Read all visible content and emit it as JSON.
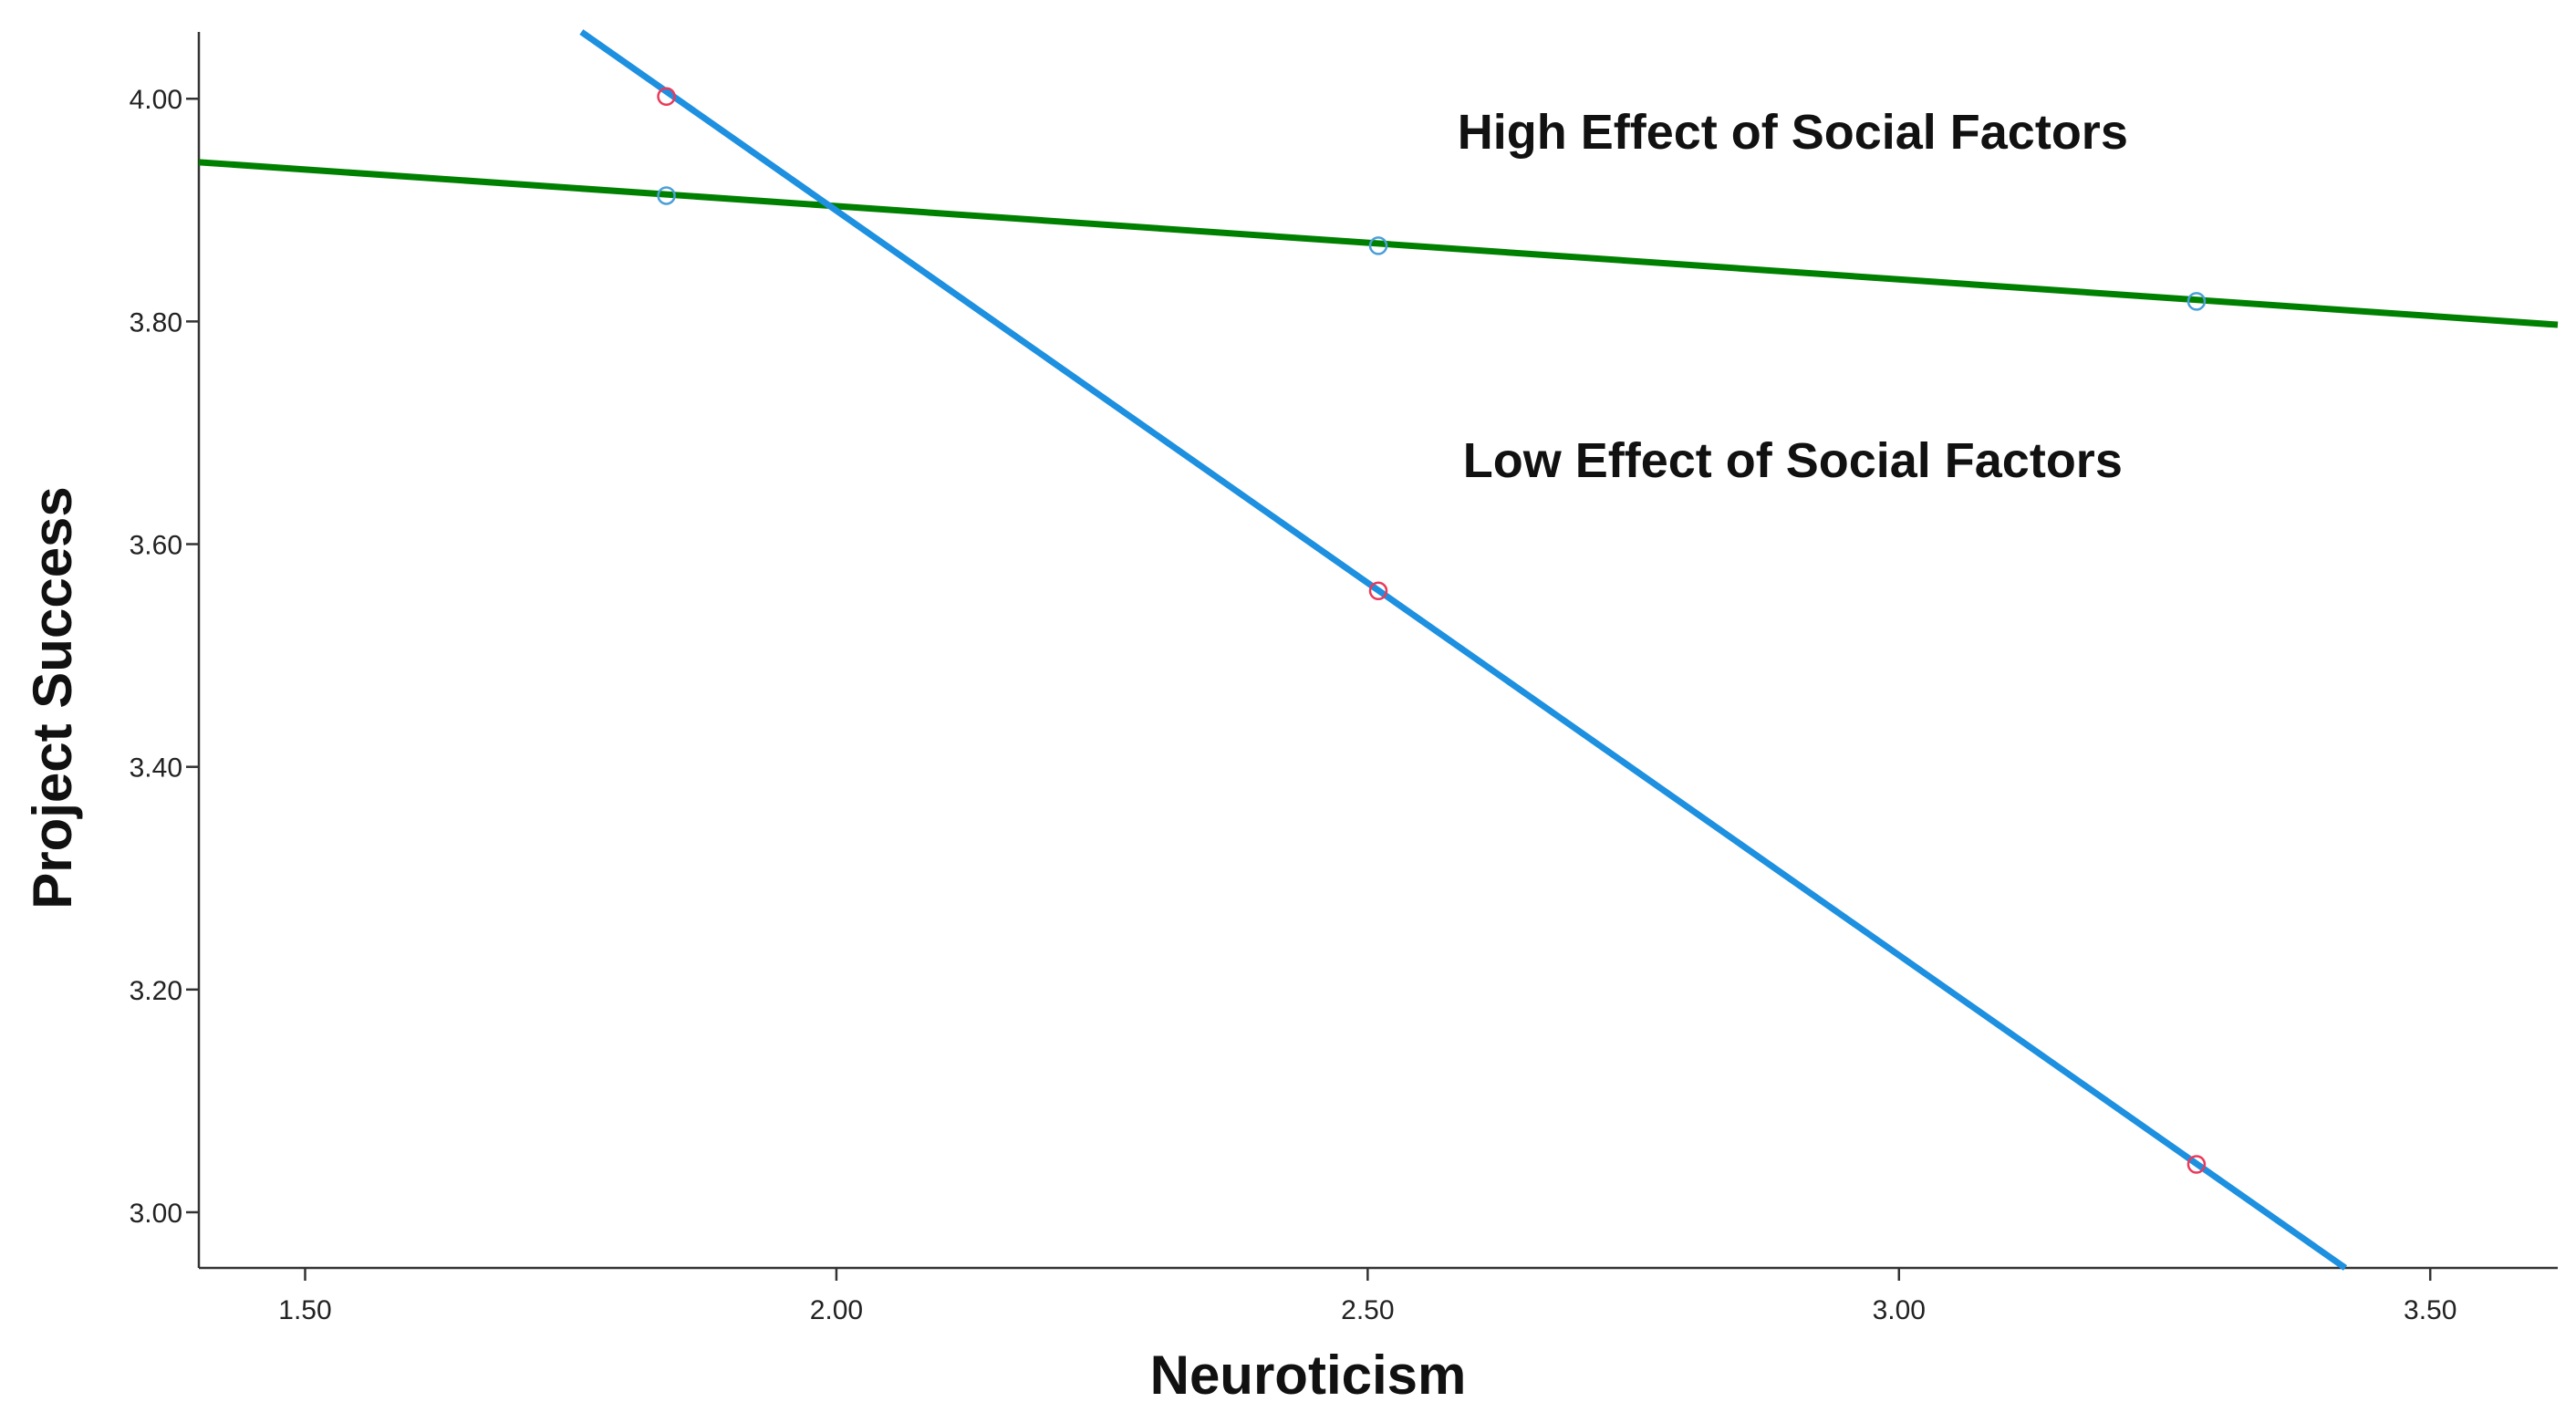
{
  "chart_data": {
    "type": "line",
    "title": "",
    "xlabel": "Neuroticism",
    "ylabel": "Project Success",
    "xlim": [
      1.4,
      3.62
    ],
    "ylim": [
      2.95,
      4.06
    ],
    "x_ticks": [
      1.5,
      2.0,
      2.5,
      3.0,
      3.5
    ],
    "x_tick_labels": [
      "1.50",
      "2.00",
      "2.50",
      "3.00",
      "3.50"
    ],
    "y_ticks": [
      3.0,
      3.2,
      3.4,
      3.6,
      3.8,
      4.0
    ],
    "y_tick_labels": [
      "3.00",
      "3.20",
      "3.40",
      "3.60",
      "3.80",
      "4.00"
    ],
    "grid": false,
    "series": [
      {
        "name": "High Effect of Social Factors",
        "color": "#008000",
        "marker_color": "#4a9fd8",
        "line": {
          "x": [
            1.4,
            3.62
          ],
          "y": [
            3.943,
            3.797
          ]
        },
        "points": {
          "x": [
            1.84,
            2.51,
            3.28
          ],
          "y": [
            3.913,
            3.868,
            3.818
          ]
        }
      },
      {
        "name": "Low Effect of Social Factors",
        "color": "#1e90e0",
        "marker_color": "#ea3a5a",
        "line": {
          "x": [
            1.76,
            3.42
          ],
          "y": [
            4.06,
            2.95
          ]
        },
        "points": {
          "x": [
            1.84,
            2.51,
            3.28
          ],
          "y": [
            4.002,
            3.558,
            3.043
          ]
        }
      }
    ],
    "annotations": [
      {
        "text": "High Effect of Social Factors",
        "x": 2.9,
        "y": 3.97
      },
      {
        "text": "Low Effect of Social Factors",
        "x": 2.9,
        "y": 3.675
      }
    ]
  }
}
